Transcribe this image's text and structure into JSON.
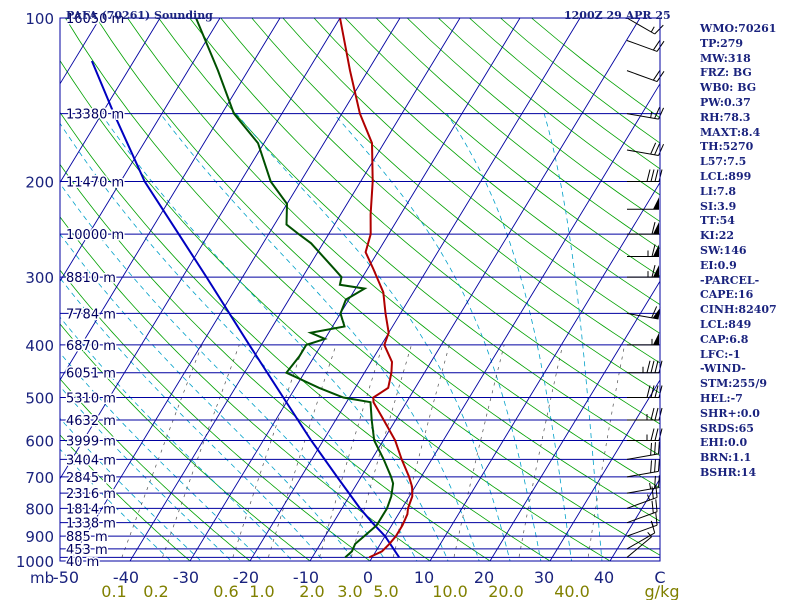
{
  "header": {
    "station": "PAFA (70261) Sounding",
    "time": "1200Z 29 APR 25"
  },
  "indices": [
    "WMO:70261",
    "TP:279",
    "MW:318",
    "FRZ: BG",
    "WB0: BG",
    "PW:0.37",
    "RH:78.3",
    "MAXT:8.4",
    "TH:5270",
    "L57:7.5",
    "LCL:899",
    "LI:7.8",
    "SI:3.9",
    "TT:54",
    "KI:22",
    "SW:146",
    "EI:0.9",
    "-PARCEL-",
    "CAPE:16",
    "CINH:82407",
    "LCL:849",
    "CAP:6.8",
    "LFC:-1",
    "-WIND-",
    "STM:255/9",
    "HEL:-7",
    "SHR+:0.0",
    "SRDS:65",
    "EHI:0.0",
    "BRN:1.1",
    "BSHR:14"
  ],
  "colors": {
    "frame": "#0000a0",
    "temperature": "#b00000",
    "dewpoint": "#005000",
    "parcel": "#0000c0",
    "dry_adiabat": "#00a000",
    "moist_adiabat": "#00a0c8",
    "mixing_ratio": "#505050",
    "axis_text": "#1a237e",
    "mixing_text": "#808000"
  },
  "chart_data": {
    "type": "skew-t",
    "pressure_ticks": [
      "100",
      "200",
      "300",
      "400",
      "500",
      "600",
      "700",
      "800",
      "900",
      "1000"
    ],
    "pressure_unit": "mb",
    "temperature_ticks": [
      "-50",
      "-40",
      "-30",
      "-20",
      "-10",
      "0",
      "10",
      "20",
      "30",
      "40",
      "C"
    ],
    "mixing_ratio_ticks": [
      "0.1",
      "0.2",
      "0.6",
      "1.0",
      "2.0",
      "3.0",
      "5.0",
      "10.0",
      "20.0",
      "40.0",
      "g/kg"
    ],
    "height_labels": [
      {
        "p": 100,
        "label": "16050 m"
      },
      {
        "p": 150,
        "label": "13380 m"
      },
      {
        "p": 200,
        "label": "11470 m"
      },
      {
        "p": 250,
        "label": "10000 m"
      },
      {
        "p": 300,
        "label": "8810 m"
      },
      {
        "p": 350,
        "label": "7784 m"
      },
      {
        "p": 400,
        "label": "6870 m"
      },
      {
        "p": 450,
        "label": "6051 m"
      },
      {
        "p": 500,
        "label": "5310 m"
      },
      {
        "p": 550,
        "label": "4632 m"
      },
      {
        "p": 600,
        "label": "3999 m"
      },
      {
        "p": 650,
        "label": "3404 m"
      },
      {
        "p": 700,
        "label": "2845 m"
      },
      {
        "p": 750,
        "label": "2316 m"
      },
      {
        "p": 800,
        "label": "1814 m"
      },
      {
        "p": 850,
        "label": "1338 m"
      },
      {
        "p": 900,
        "label": "885 m"
      },
      {
        "p": 950,
        "label": "453 m"
      },
      {
        "p": 1000,
        "label": "40 m"
      }
    ],
    "temperature": [
      [
        985,
        -0.5
      ],
      [
        960,
        1.0
      ],
      [
        930,
        1.5
      ],
      [
        900,
        1.8
      ],
      [
        860,
        1.8
      ],
      [
        820,
        1.5
      ],
      [
        800,
        1.0
      ],
      [
        760,
        0.5
      ],
      [
        730,
        -0.5
      ],
      [
        700,
        -2.0
      ],
      [
        650,
        -5.0
      ],
      [
        600,
        -8.0
      ],
      [
        550,
        -12.0
      ],
      [
        510,
        -15.5
      ],
      [
        500,
        -16.0
      ],
      [
        480,
        -14.5
      ],
      [
        450,
        -15.5
      ],
      [
        430,
        -16.5
      ],
      [
        400,
        -19.5
      ],
      [
        380,
        -20.0
      ],
      [
        350,
        -22.5
      ],
      [
        320,
        -25.0
      ],
      [
        290,
        -29.0
      ],
      [
        270,
        -32.0
      ],
      [
        250,
        -33.0
      ],
      [
        230,
        -35.0
      ],
      [
        200,
        -38.0
      ],
      [
        170,
        -42.0
      ],
      [
        150,
        -47.0
      ],
      [
        125,
        -53.0
      ],
      [
        100,
        -60.0
      ]
    ],
    "dewpoint": [
      [
        985,
        -4.5
      ],
      [
        960,
        -4.0
      ],
      [
        930,
        -4.2
      ],
      [
        900,
        -3.5
      ],
      [
        880,
        -3.0
      ],
      [
        860,
        -2.5
      ],
      [
        800,
        -2.5
      ],
      [
        760,
        -3.0
      ],
      [
        720,
        -4.0
      ],
      [
        700,
        -5.0
      ],
      [
        650,
        -8.0
      ],
      [
        600,
        -11.5
      ],
      [
        550,
        -14.0
      ],
      [
        510,
        -16.0
      ],
      [
        500,
        -21.0
      ],
      [
        480,
        -26.0
      ],
      [
        450,
        -33.0
      ],
      [
        420,
        -32.5
      ],
      [
        400,
        -32.5
      ],
      [
        390,
        -30.0
      ],
      [
        380,
        -33.0
      ],
      [
        370,
        -28.0
      ],
      [
        350,
        -30.0
      ],
      [
        330,
        -30.5
      ],
      [
        315,
        -28.5
      ],
      [
        310,
        -33.0
      ],
      [
        300,
        -33.5
      ],
      [
        290,
        -35.5
      ],
      [
        260,
        -42.0
      ],
      [
        250,
        -45.0
      ],
      [
        240,
        -48.0
      ],
      [
        220,
        -50.0
      ],
      [
        200,
        -55.0
      ],
      [
        170,
        -61.0
      ],
      [
        150,
        -68.0
      ],
      [
        125,
        -75.0
      ],
      [
        100,
        -84.0
      ]
    ],
    "parcel": [
      [
        985,
        4.5
      ],
      [
        900,
        0.0
      ],
      [
        850,
        -3.5
      ],
      [
        800,
        -7.0
      ],
      [
        700,
        -14.0
      ],
      [
        600,
        -22.0
      ],
      [
        500,
        -31.0
      ],
      [
        400,
        -42.0
      ],
      [
        300,
        -56.0
      ],
      [
        250,
        -65.0
      ],
      [
        200,
        -76.0
      ],
      [
        150,
        -88.0
      ],
      [
        120,
        -97.0
      ]
    ],
    "wind_barbs": [
      {
        "p": 985,
        "dir": 230,
        "spd": 5
      },
      {
        "p": 950,
        "dir": 240,
        "spd": 10
      },
      {
        "p": 900,
        "dir": 250,
        "spd": 15
      },
      {
        "p": 850,
        "dir": 250,
        "spd": 20
      },
      {
        "p": 800,
        "dir": 250,
        "spd": 25
      },
      {
        "p": 750,
        "dir": 260,
        "spd": 25
      },
      {
        "p": 700,
        "dir": 260,
        "spd": 30
      },
      {
        "p": 650,
        "dir": 260,
        "spd": 30
      },
      {
        "p": 600,
        "dir": 270,
        "spd": 35
      },
      {
        "p": 550,
        "dir": 270,
        "spd": 35
      },
      {
        "p": 500,
        "dir": 270,
        "spd": 40
      },
      {
        "p": 450,
        "dir": 270,
        "spd": 45
      },
      {
        "p": 400,
        "dir": 270,
        "spd": 55
      },
      {
        "p": 350,
        "dir": 280,
        "spd": 60
      },
      {
        "p": 300,
        "dir": 270,
        "spd": 65
      },
      {
        "p": 275,
        "dir": 270,
        "spd": 65
      },
      {
        "p": 250,
        "dir": 270,
        "spd": 60
      },
      {
        "p": 225,
        "dir": 270,
        "spd": 50
      },
      {
        "p": 200,
        "dir": 270,
        "spd": 40
      },
      {
        "p": 175,
        "dir": 280,
        "spd": 30
      },
      {
        "p": 150,
        "dir": 280,
        "spd": 25
      },
      {
        "p": 125,
        "dir": 290,
        "spd": 20
      },
      {
        "p": 110,
        "dir": 290,
        "spd": 20
      },
      {
        "p": 100,
        "dir": 300,
        "spd": 15
      }
    ],
    "xlim": [
      -50,
      50
    ],
    "ylim": [
      1000,
      100
    ],
    "yscale": "log"
  }
}
